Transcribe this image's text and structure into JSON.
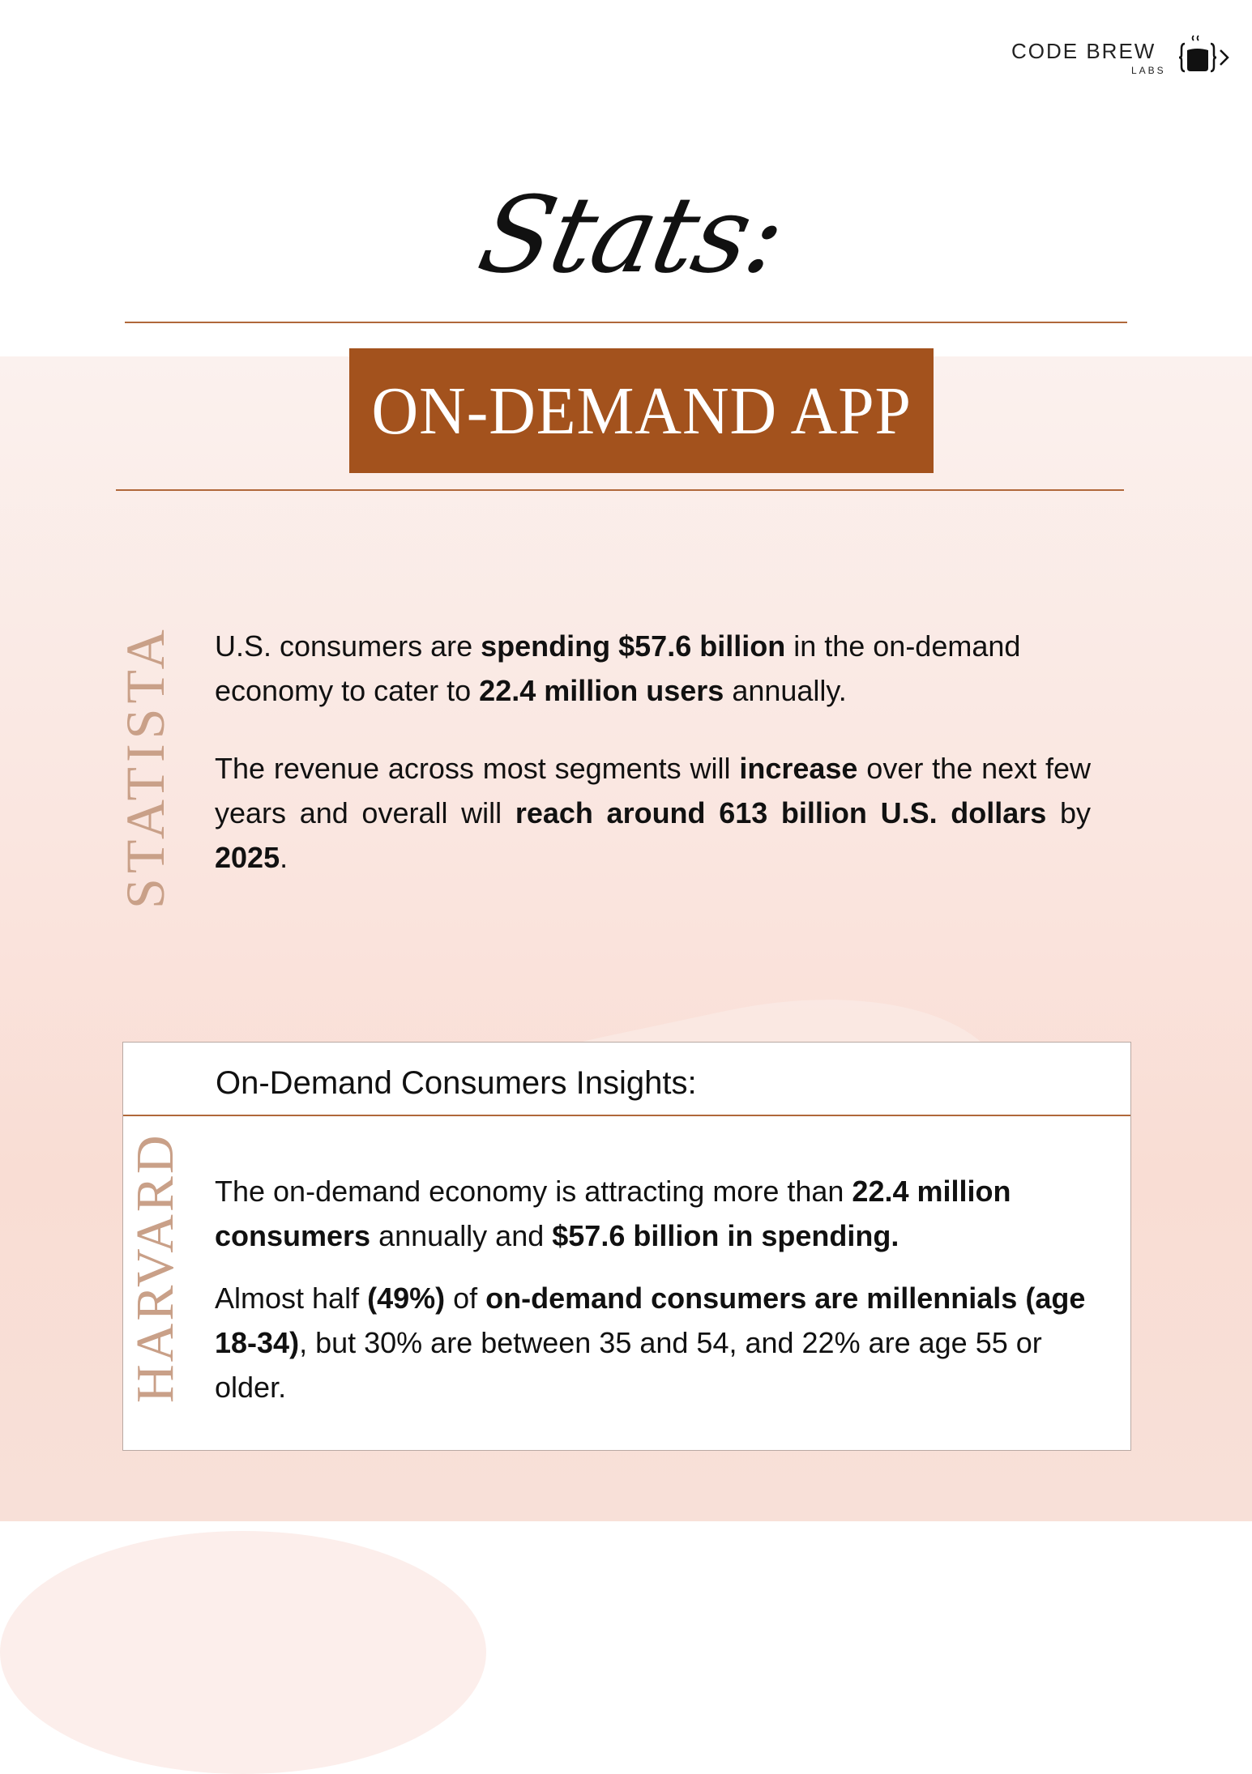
{
  "logo": {
    "name": "CODE BREW",
    "sub": "LABS"
  },
  "script_title": "Stats:",
  "banner": {
    "title": "ON-DEMAND APP",
    "color": "#a3521d"
  },
  "statista": {
    "source": "STATISTA",
    "p1": {
      "a": "U.S. consumers are ",
      "b": "spending $57.6 billion",
      "c": " in the on-demand economy to cater to ",
      "d": "22.4 million users",
      "e": " annually."
    },
    "p2": {
      "a": "The revenue across most segments will ",
      "b": "increase",
      "c": " over the next few years and overall will ",
      "d": "reach around 613 billion U.S. dollars",
      "e": " by ",
      "f": "2025",
      "g": "."
    }
  },
  "harvard": {
    "source": "HARVARD",
    "heading": "On-Demand Consumers Insights:",
    "p1": {
      "a": "The on-demand economy is attracting more than ",
      "b": "22.4 million consumers",
      "c": " annually and ",
      "d": "$57.6 billion in spending."
    },
    "p2": {
      "a": "Almost half ",
      "b": "(49%)",
      "c": " of ",
      "d": "on-demand consumers are millennials (age 18-34)",
      "e": ", but 30% are between 35 and 54, and 22% are age 55 or older."
    }
  },
  "colors": {
    "accent": "#a3521d",
    "rule": "#b0683a",
    "source_label": "#c9a088",
    "background": "#fae6e0"
  }
}
